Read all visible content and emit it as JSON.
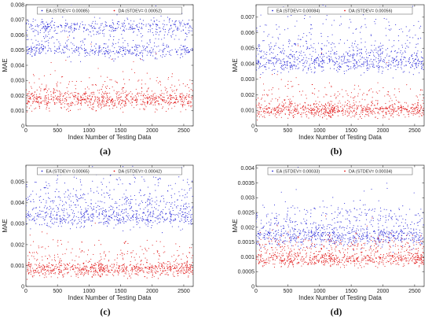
{
  "chart_data": [
    {
      "type": "scatter",
      "caption": "(a)",
      "xlabel": "Index Number of Testing Data",
      "ylabel": "MAE",
      "xlim": [
        0,
        2650
      ],
      "ylim": [
        0,
        0.008
      ],
      "xticks": [
        0,
        500,
        1000,
        1500,
        2000,
        2500
      ],
      "yticks": [
        "0",
        "0.001",
        "0.002",
        "0.003",
        "0.004",
        "0.005",
        "0.006",
        "0.007",
        "0.008"
      ],
      "grid": false,
      "legend_position": "top",
      "series": [
        {
          "name": "EA (STDEV= 0.00085)",
          "color": "#1f1fd6",
          "bands": [
            {
              "center": 0.0065,
              "spread": 0.0004,
              "weight": 0.45
            },
            {
              "center": 0.005,
              "spread": 0.0004,
              "weight": 0.45
            },
            {
              "center": 0.0057,
              "spread": 0.0008,
              "weight": 0.1
            }
          ],
          "n": 900
        },
        {
          "name": "DA (STDEV= 0.00052)",
          "color": "#e01010",
          "bands": [
            {
              "center": 0.0017,
              "spread": 0.0005,
              "weight": 0.85
            },
            {
              "center": 0.0024,
              "spread": 0.0008,
              "weight": 0.15
            }
          ],
          "n": 900
        }
      ]
    },
    {
      "type": "scatter",
      "caption": "(b)",
      "xlabel": "Index Number of Testing Data",
      "ylabel": "MAE",
      "xlim": [
        0,
        2650
      ],
      "ylim": [
        0,
        0.0078
      ],
      "xticks": [
        0,
        500,
        1000,
        1500,
        2000,
        2500
      ],
      "yticks": [
        "0",
        "0.001",
        "0.002",
        "0.003",
        "0.004",
        "0.005",
        "0.006",
        "0.007"
      ],
      "grid": false,
      "legend_position": "top",
      "series": [
        {
          "name": "EA (STDEV= 0.00084)",
          "color": "#1f1fd6",
          "bands": [
            {
              "center": 0.004,
              "spread": 0.0005,
              "weight": 0.55
            },
            {
              "center": 0.0047,
              "spread": 0.0007,
              "weight": 0.3
            },
            {
              "center": 0.006,
              "spread": 0.0012,
              "weight": 0.15
            }
          ],
          "n": 900
        },
        {
          "name": "DA (STDEV= 0.00056)",
          "color": "#e01010",
          "bands": [
            {
              "center": 0.001,
              "spread": 0.0004,
              "weight": 0.8
            },
            {
              "center": 0.0017,
              "spread": 0.0008,
              "weight": 0.2
            }
          ],
          "n": 900
        }
      ]
    },
    {
      "type": "scatter",
      "caption": "(c)",
      "xlabel": "Index Number of Testing Data",
      "ylabel": "MAE",
      "xlim": [
        0,
        2650
      ],
      "ylim": [
        0,
        0.0058
      ],
      "xticks": [
        0,
        500,
        1000,
        1500,
        2000,
        2500
      ],
      "yticks": [
        "0",
        "0.001",
        "0.002",
        "0.003",
        "0.004",
        "0.005"
      ],
      "grid": false,
      "legend_position": "top",
      "series": [
        {
          "name": "EA (STDEV= 0.00065)",
          "color": "#1f1fd6",
          "bands": [
            {
              "center": 0.0033,
              "spread": 0.0004,
              "weight": 0.6
            },
            {
              "center": 0.004,
              "spread": 0.0005,
              "weight": 0.25
            },
            {
              "center": 0.0047,
              "spread": 0.0007,
              "weight": 0.15
            }
          ],
          "n": 900
        },
        {
          "name": "DA (STDEV= 0.00042)",
          "color": "#e01010",
          "bands": [
            {
              "center": 0.0008,
              "spread": 0.0003,
              "weight": 0.8
            },
            {
              "center": 0.0014,
              "spread": 0.0006,
              "weight": 0.2
            }
          ],
          "n": 900
        }
      ]
    },
    {
      "type": "scatter",
      "caption": "(d)",
      "xlabel": "Index Number of Testing Data",
      "ylabel": "MAE",
      "xlim": [
        0,
        2650
      ],
      "ylim": [
        0,
        0.0041
      ],
      "xticks": [
        0,
        500,
        1000,
        1500,
        2000,
        2500
      ],
      "yticks": [
        "0",
        "0.0005",
        "0.001",
        "0.0015",
        "0.002",
        "0.0025",
        "0.003",
        "0.0035",
        "0.004"
      ],
      "grid": false,
      "legend_position": "top",
      "series": [
        {
          "name": "EA (STDEV= 0.00033)",
          "color": "#1f1fd6",
          "bands": [
            {
              "center": 0.0017,
              "spread": 0.0003,
              "weight": 0.75
            },
            {
              "center": 0.0023,
              "spread": 0.0004,
              "weight": 0.25
            }
          ],
          "n": 900
        },
        {
          "name": "DA (STDEV= 0.00034)",
          "color": "#e01010",
          "bands": [
            {
              "center": 0.0009,
              "spread": 0.0002,
              "weight": 0.7
            },
            {
              "center": 0.0013,
              "spread": 0.0003,
              "weight": 0.3
            }
          ],
          "n": 900
        }
      ]
    }
  ]
}
